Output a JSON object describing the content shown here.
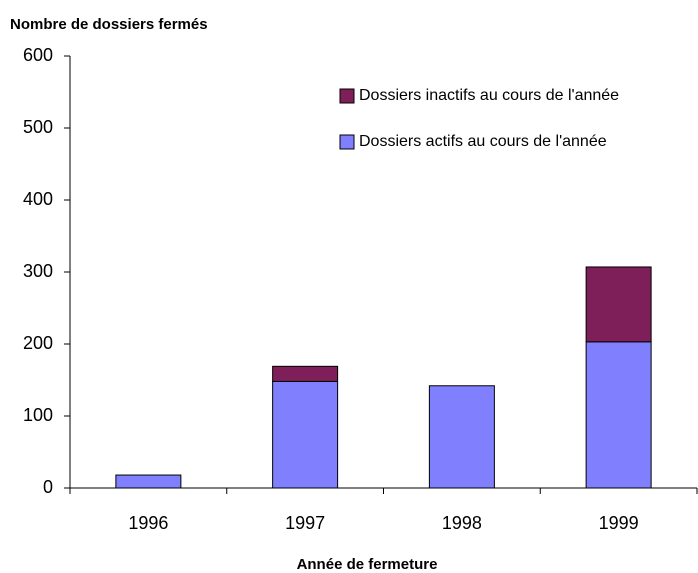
{
  "chart_data": {
    "type": "bar",
    "stacked": true,
    "title": "Nombre de dossiers fermés",
    "x_label": "Année de fermeture",
    "categories": [
      "1996",
      "1997",
      "1998",
      "1999"
    ],
    "series": [
      {
        "name": "Dossiers actifs au cours de l'année",
        "color": "#8080ff",
        "values": [
          18,
          148,
          142,
          203
        ]
      },
      {
        "name": "Dossiers inactifs au cours de l'année",
        "color": "#7f1f5a",
        "values": [
          0,
          21,
          0,
          104
        ]
      }
    ],
    "ylim": [
      0,
      600
    ],
    "yticks": [
      0,
      100,
      200,
      300,
      400,
      500,
      600
    ],
    "grid": false
  }
}
